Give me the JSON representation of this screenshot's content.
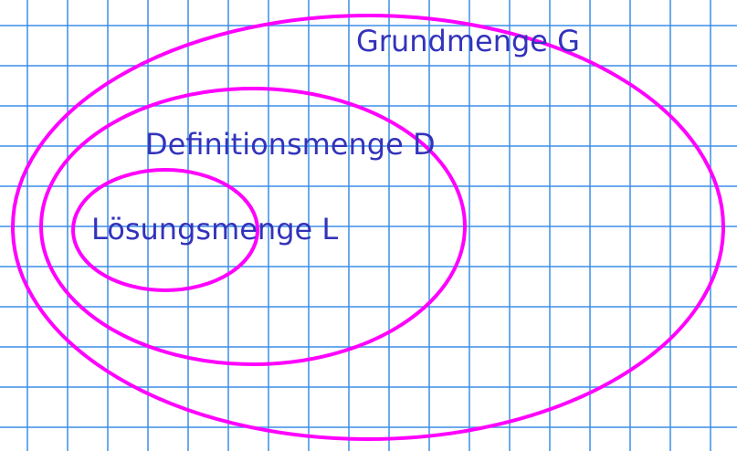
{
  "colors": {
    "background": "#ffffff",
    "grid": "#3b8ee8",
    "ellipse": "#ff00ff",
    "label": "#3333bb"
  },
  "sets": {
    "grundmenge": {
      "label": "Grundmenge G"
    },
    "definitionsmenge": {
      "label": "Definitionsmenge D"
    },
    "loesungsmenge": {
      "label": "Lösungsmenge L"
    }
  }
}
